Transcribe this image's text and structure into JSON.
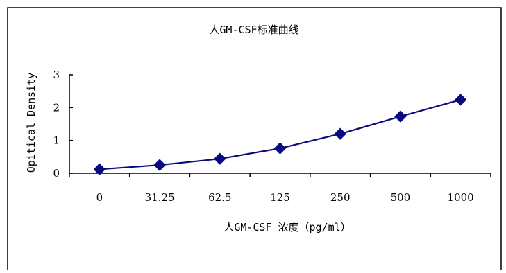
{
  "chart_data": {
    "type": "line",
    "title": "人GM-CSF标准曲线",
    "xlabel": "人GM-CSF 浓度（pg/ml）",
    "ylabel": "Opitical Density",
    "categories": [
      "0",
      "31.25",
      "62.5",
      "125",
      "250",
      "500",
      "1000"
    ],
    "series": [
      {
        "values": [
          0.12,
          0.25,
          0.44,
          0.76,
          1.2,
          1.73,
          2.24
        ],
        "color": "#0a0a80",
        "marker": "diamond"
      }
    ],
    "yticks": [
      0,
      1,
      2,
      3
    ],
    "ylim": [
      0,
      3
    ],
    "grid": false,
    "legend": "none"
  }
}
